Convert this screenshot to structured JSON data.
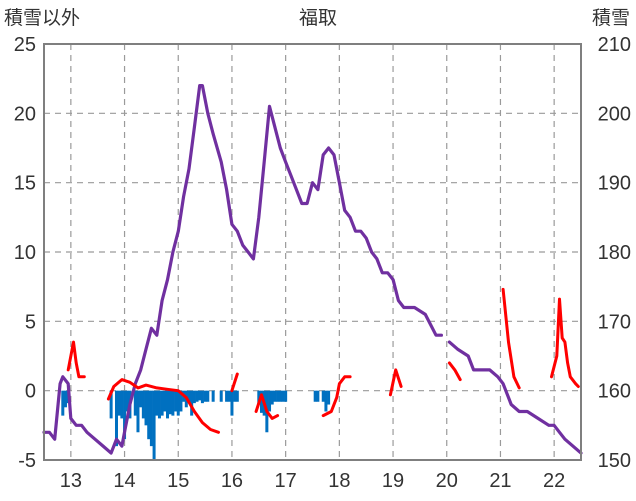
{
  "chart_data": {
    "type": "line",
    "title": "福取",
    "left_axis_label": "積雪以外",
    "right_axis_label": "積雪",
    "x_ticks": [
      "13",
      "14",
      "15",
      "16",
      "17",
      "18",
      "19",
      "20",
      "21",
      "22"
    ],
    "xlim": [
      12.5,
      22.5
    ],
    "ylim_left": [
      -5,
      25
    ],
    "ylim_right": [
      150,
      210
    ],
    "y_ticks_left": [
      "-5",
      "0",
      "5",
      "10",
      "15",
      "20",
      "25"
    ],
    "y_ticks_right": [
      "150",
      "160",
      "170",
      "180",
      "190",
      "200",
      "210"
    ],
    "grid": "dashed vertical at each x tick and dashed horizontal at each left tick",
    "colors": {
      "snow_depth": "#7030a0",
      "temperature": "#ff0000",
      "bars": "#0070c0"
    },
    "series": [
      {
        "axis": "right",
        "style": "line",
        "color": "#7030a0",
        "segments": [
          [
            [
              12.5,
              154
            ],
            [
              12.6,
              154
            ],
            [
              12.7,
              153
            ],
            [
              12.8,
              161
            ],
            [
              12.85,
              162
            ],
            [
              12.95,
              161
            ],
            [
              13.0,
              156
            ],
            [
              13.1,
              155
            ],
            [
              13.2,
              155
            ],
            [
              13.3,
              154
            ],
            [
              13.45,
              153
            ],
            [
              13.6,
              152
            ],
            [
              13.75,
              151
            ],
            [
              13.85,
              153
            ],
            [
              13.95,
              152
            ],
            [
              14.0,
              154
            ],
            [
              14.1,
              158
            ],
            [
              14.2,
              161
            ],
            [
              14.3,
              163
            ],
            [
              14.4,
              166
            ],
            [
              14.5,
              169
            ],
            [
              14.6,
              168
            ],
            [
              14.7,
              173
            ],
            [
              14.8,
              176
            ],
            [
              14.9,
              180
            ],
            [
              15.0,
              183
            ],
            [
              15.1,
              188
            ],
            [
              15.2,
              192
            ],
            [
              15.3,
              198
            ],
            [
              15.4,
              204
            ],
            [
              15.45,
              204
            ],
            [
              15.55,
              200
            ],
            [
              15.65,
              197
            ],
            [
              15.8,
              193
            ],
            [
              15.9,
              189
            ],
            [
              16.0,
              184
            ],
            [
              16.1,
              183
            ],
            [
              16.2,
              181
            ],
            [
              16.3,
              180
            ],
            [
              16.4,
              179
            ],
            [
              16.5,
              185
            ],
            [
              16.6,
              193
            ],
            [
              16.7,
              201
            ],
            [
              16.8,
              198
            ],
            [
              16.9,
              195
            ],
            [
              17.0,
              193
            ],
            [
              17.1,
              191
            ],
            [
              17.2,
              189
            ],
            [
              17.3,
              187
            ],
            [
              17.4,
              187
            ],
            [
              17.5,
              190
            ],
            [
              17.6,
              189
            ],
            [
              17.7,
              194
            ],
            [
              17.8,
              195
            ],
            [
              17.9,
              194
            ],
            [
              18.0,
              190
            ],
            [
              18.1,
              186
            ],
            [
              18.2,
              185
            ],
            [
              18.3,
              183
            ],
            [
              18.4,
              183
            ],
            [
              18.5,
              182
            ],
            [
              18.6,
              180
            ],
            [
              18.7,
              179
            ],
            [
              18.8,
              177
            ],
            [
              18.9,
              177
            ],
            [
              19.0,
              176
            ],
            [
              19.1,
              173
            ],
            [
              19.2,
              172
            ],
            [
              19.4,
              172
            ],
            [
              19.6,
              171
            ],
            [
              19.8,
              168
            ],
            [
              19.9,
              168
            ]
          ],
          [
            [
              20.05,
              167
            ],
            [
              20.2,
              166
            ],
            [
              20.4,
              165
            ],
            [
              20.5,
              163
            ],
            [
              20.8,
              163
            ],
            [
              20.95,
              162
            ],
            [
              21.05,
              161
            ],
            [
              21.2,
              158
            ],
            [
              21.35,
              157
            ],
            [
              21.5,
              157
            ],
            [
              21.7,
              156
            ],
            [
              21.9,
              155
            ],
            [
              22.0,
              155
            ],
            [
              22.1,
              154
            ],
            [
              22.2,
              153
            ],
            [
              22.35,
              152
            ],
            [
              22.5,
              151
            ]
          ]
        ]
      },
      {
        "axis": "left",
        "style": "line",
        "color": "#ff0000",
        "segments": [
          [
            [
              12.95,
              1.5
            ],
            [
              13.05,
              3.5
            ],
            [
              13.1,
              2.0
            ],
            [
              13.15,
              1.0
            ],
            [
              13.25,
              1.0
            ]
          ],
          [
            [
              13.7,
              -0.6
            ],
            [
              13.8,
              0.3
            ],
            [
              13.95,
              0.8
            ],
            [
              14.1,
              0.6
            ],
            [
              14.25,
              0.2
            ],
            [
              14.4,
              0.4
            ],
            [
              14.6,
              0.2
            ],
            [
              14.8,
              0.1
            ],
            [
              15.0,
              0.0
            ],
            [
              15.15,
              -0.5
            ],
            [
              15.3,
              -1.5
            ],
            [
              15.45,
              -2.3
            ],
            [
              15.6,
              -2.8
            ],
            [
              15.75,
              -3.0
            ]
          ],
          [
            [
              16.0,
              0.0
            ],
            [
              16.1,
              1.2
            ]
          ],
          [
            [
              16.45,
              -1.5
            ],
            [
              16.55,
              -0.3
            ],
            [
              16.65,
              -1.5
            ],
            [
              16.75,
              -2.0
            ],
            [
              16.85,
              -1.8
            ]
          ],
          [
            [
              17.7,
              -1.8
            ],
            [
              17.85,
              -1.5
            ],
            [
              17.95,
              -0.5
            ],
            [
              18.0,
              0.5
            ],
            [
              18.1,
              1.0
            ],
            [
              18.2,
              1.0
            ]
          ],
          [
            [
              18.95,
              -0.3
            ],
            [
              19.05,
              1.5
            ],
            [
              19.15,
              0.3
            ]
          ],
          [
            [
              20.05,
              2.0
            ],
            [
              20.15,
              1.5
            ],
            [
              20.25,
              0.8
            ]
          ],
          [
            [
              21.05,
              7.3
            ],
            [
              21.15,
              3.5
            ],
            [
              21.25,
              1.0
            ],
            [
              21.35,
              0.2
            ]
          ],
          [
            [
              21.95,
              1.0
            ],
            [
              22.05,
              2.5
            ],
            [
              22.1,
              6.6
            ],
            [
              22.15,
              3.8
            ],
            [
              22.2,
              3.5
            ],
            [
              22.25,
              2.0
            ],
            [
              22.3,
              1.0
            ],
            [
              22.4,
              0.5
            ],
            [
              22.45,
              0.3
            ]
          ]
        ]
      },
      {
        "axis": "left",
        "style": "bar",
        "color": "#0070c0",
        "x": [
          12.85,
          12.9,
          12.95,
          13.75,
          13.85,
          13.9,
          13.95,
          14.0,
          14.05,
          14.1,
          14.2,
          14.25,
          14.3,
          14.35,
          14.4,
          14.45,
          14.5,
          14.55,
          14.6,
          14.65,
          14.7,
          14.75,
          14.8,
          14.85,
          14.9,
          14.95,
          15.0,
          15.05,
          15.1,
          15.15,
          15.2,
          15.25,
          15.3,
          15.35,
          15.4,
          15.45,
          15.5,
          15.55,
          15.65,
          15.8,
          15.9,
          15.95,
          16.0,
          16.05,
          16.1,
          16.5,
          16.55,
          16.6,
          16.65,
          16.7,
          16.75,
          16.8,
          16.85,
          16.9,
          16.95,
          17.0,
          17.55,
          17.6,
          17.7,
          17.75,
          17.8
        ],
        "values": [
          -1.8,
          -1.2,
          -0.9,
          -2.0,
          -4.0,
          -1.8,
          -2.0,
          -3.5,
          -1.5,
          -2.0,
          -1.8,
          -3.0,
          -1.2,
          -2.0,
          -2.5,
          -3.5,
          -4.0,
          -5.0,
          -1.8,
          -2.0,
          -1.8,
          -1.5,
          -2.0,
          -1.7,
          -1.8,
          -1.5,
          -1.8,
          -1.5,
          -0.8,
          -1.2,
          -0.8,
          -1.8,
          -0.9,
          -0.8,
          -0.7,
          -0.9,
          -0.8,
          -0.8,
          -0.8,
          -0.8,
          -0.8,
          -0.8,
          -1.8,
          -0.8,
          -0.8,
          -1.0,
          -1.6,
          -1.8,
          -3.0,
          -1.5,
          -1.0,
          -0.8,
          -0.8,
          -0.8,
          -0.8,
          -0.8,
          -0.8,
          -0.8,
          -0.8,
          -1.5,
          -1.0
        ]
      }
    ]
  }
}
